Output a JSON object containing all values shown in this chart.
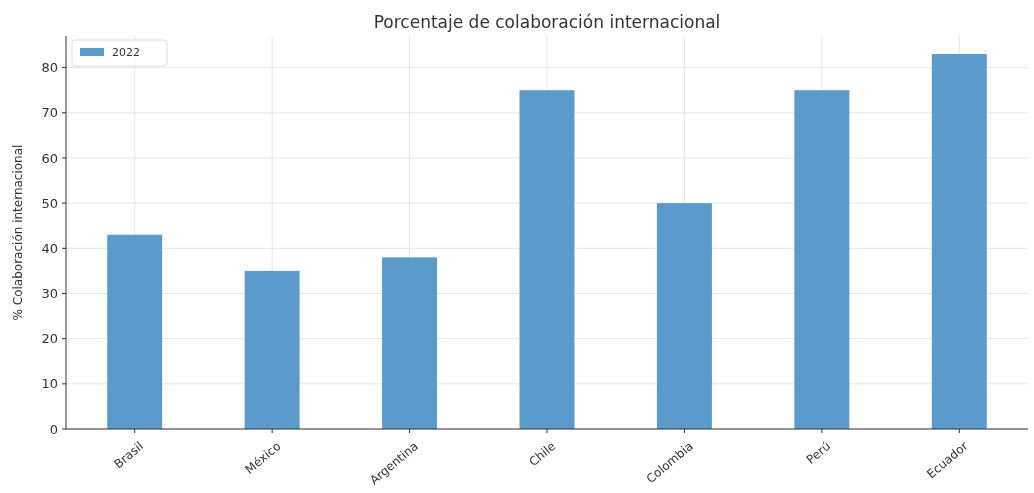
{
  "chart_data": {
    "type": "bar",
    "title": "Porcentaje de colaboración internacional",
    "ylabel": "% Colaboración internacional",
    "categories": [
      "Brasil",
      "México",
      "Argentina",
      "Chile",
      "Colombia",
      "Perú",
      "Ecuador"
    ],
    "series": [
      {
        "name": "2022",
        "color": "#5b9bcb",
        "values": [
          43,
          35,
          38,
          75,
          50,
          75,
          83
        ]
      }
    ],
    "ylim": [
      0,
      87
    ],
    "yticks": [
      0,
      10,
      20,
      30,
      40,
      50,
      60,
      70,
      80
    ],
    "grid": true,
    "legend": "top left"
  }
}
